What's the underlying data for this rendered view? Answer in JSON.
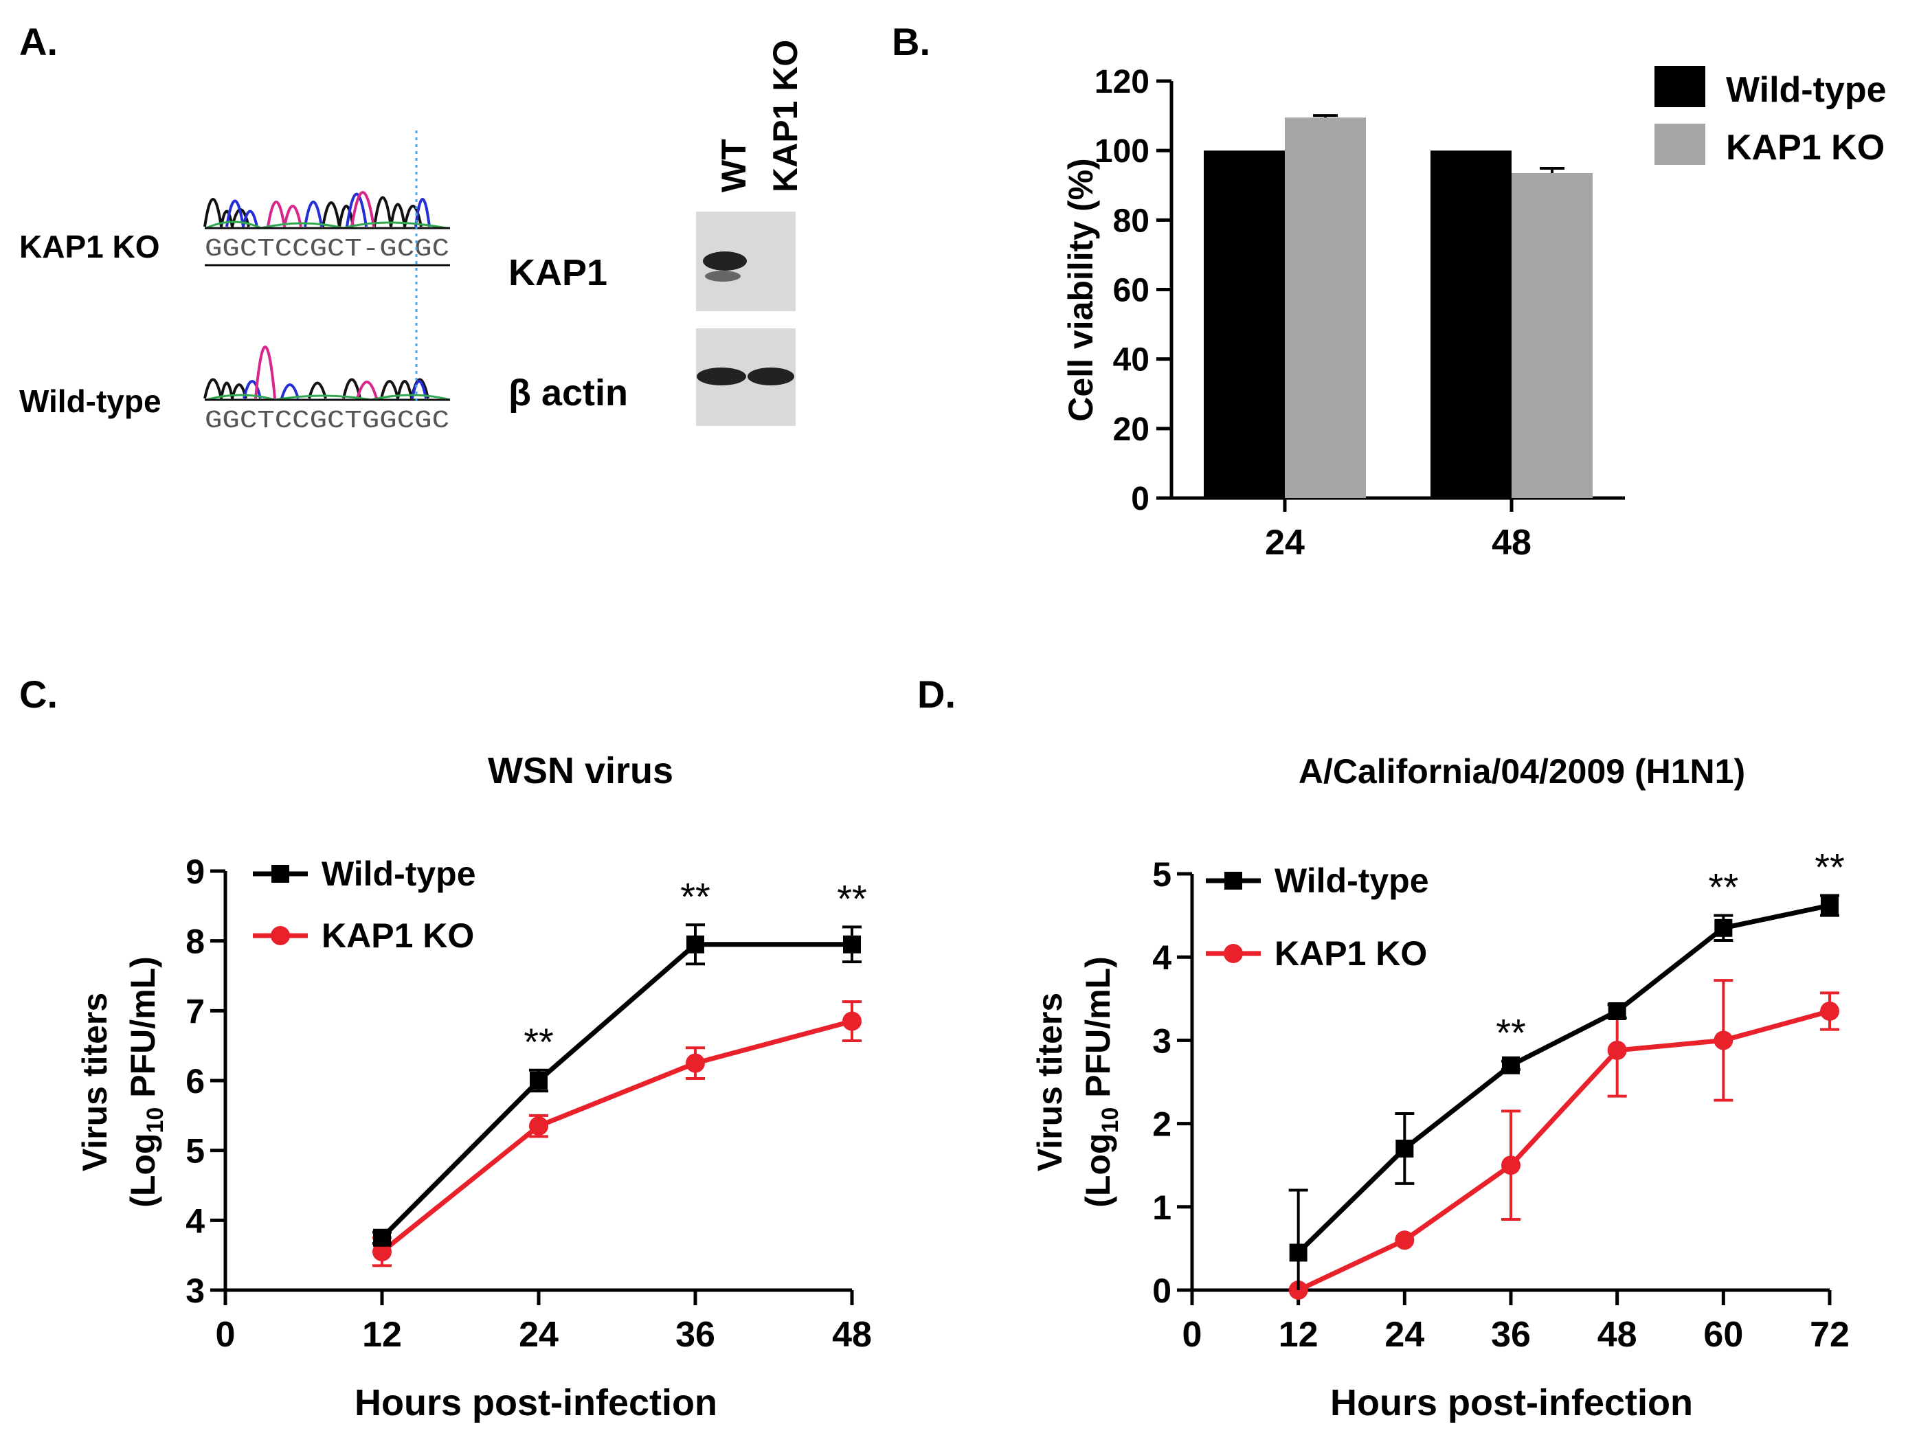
{
  "panels": {
    "a": {
      "label": "A.",
      "seq_kap1ko_label": "KAP1 KO",
      "seq_wt_label": "Wild-type",
      "seq_kap1ko_text": "GGCTCCGCT-GCGC",
      "seq_wt_text": "GGCTCCGCTGGCGC",
      "blot_lane_wt": "WT",
      "blot_lane_ko": "KAP1 KO",
      "blot_row_kap1": "KAP1",
      "blot_row_actin": "β actin"
    },
    "b": {
      "label": "B."
    },
    "c": {
      "label": "C."
    },
    "d": {
      "label": "D."
    }
  },
  "colors": {
    "wild_type": "#000000",
    "kap1_ko_line": "#e8212b",
    "kap1_ko_bar": "#a6a6a6",
    "seq_a": "#2fa84f",
    "seq_c": "#2430d6",
    "seq_g": "#111111",
    "seq_t": "#d9268c"
  },
  "chart_data": [
    {
      "panel": "B.",
      "type": "bar",
      "categories": [
        "24",
        "48"
      ],
      "series": [
        {
          "name": "Wild-type",
          "values": [
            100,
            100
          ],
          "errors": [
            0,
            0
          ]
        },
        {
          "name": "KAP1 KO",
          "values": [
            109.5,
            93.5
          ],
          "errors": [
            0.6,
            1.4
          ]
        }
      ],
      "xlabel": "",
      "ylabel": "Cell viability (%)",
      "ylim": [
        0,
        120
      ],
      "yticks": [
        0,
        20,
        40,
        60,
        80,
        100,
        120
      ],
      "legend": "top-right",
      "grid": false
    },
    {
      "panel": "C.",
      "type": "line",
      "title": "WSN virus",
      "x": [
        12,
        24,
        36,
        48
      ],
      "series": [
        {
          "name": "Wild-type",
          "values": [
            3.75,
            6.0,
            7.95,
            7.95
          ],
          "errors": [
            0.08,
            0.15,
            0.28,
            0.25
          ]
        },
        {
          "name": "KAP1 KO",
          "values": [
            3.55,
            5.35,
            6.25,
            6.85
          ],
          "errors": [
            0.2,
            0.15,
            0.22,
            0.28
          ]
        }
      ],
      "annotations": [
        {
          "x": 24,
          "text": "**"
        },
        {
          "x": 36,
          "text": "**"
        },
        {
          "x": 48,
          "text": "**"
        }
      ],
      "xlabel": "Hours post-infection",
      "ylabel_line1": "Virus titers",
      "ylabel_line2_prefix": "(Log",
      "ylabel_line2_sub": "10",
      "ylabel_line2_suffix": " PFU/mL)",
      "xlim": [
        0,
        48
      ],
      "xticks": [
        0,
        12,
        24,
        36,
        48
      ],
      "ylim": [
        3,
        9
      ],
      "yticks": [
        3,
        4,
        5,
        6,
        7,
        8,
        9
      ],
      "legend": "top-left",
      "grid": false
    },
    {
      "panel": "D.",
      "type": "line",
      "title": "A/California/04/2009 (H1N1)",
      "x": [
        12,
        24,
        36,
        48,
        60,
        72
      ],
      "series": [
        {
          "name": "Wild-type",
          "values": [
            0.45,
            1.7,
            2.7,
            3.35,
            4.35,
            4.62
          ],
          "errors": [
            0.75,
            0.42,
            0.05,
            0.08,
            0.15,
            0.12
          ]
        },
        {
          "name": "KAP1 KO",
          "values": [
            0.0,
            0.6,
            1.5,
            2.88,
            3.0,
            3.35
          ],
          "errors": [
            0.0,
            0.0,
            0.65,
            0.55,
            0.72,
            0.22
          ]
        }
      ],
      "annotations": [
        {
          "x": 36,
          "text": "**"
        },
        {
          "x": 60,
          "text": "**"
        },
        {
          "x": 72,
          "text": "**"
        }
      ],
      "xlabel": "Hours post-infection",
      "ylabel_line1": "Virus titers",
      "ylabel_line2_prefix": "(Log",
      "ylabel_line2_sub": "10",
      "ylabel_line2_suffix": " PFU/mL)",
      "xlim": [
        0,
        72
      ],
      "xticks": [
        0,
        12,
        24,
        36,
        48,
        60,
        72
      ],
      "ylim": [
        0,
        5
      ],
      "yticks": [
        0,
        1,
        2,
        3,
        4,
        5
      ],
      "legend": "top-left",
      "grid": false
    }
  ]
}
